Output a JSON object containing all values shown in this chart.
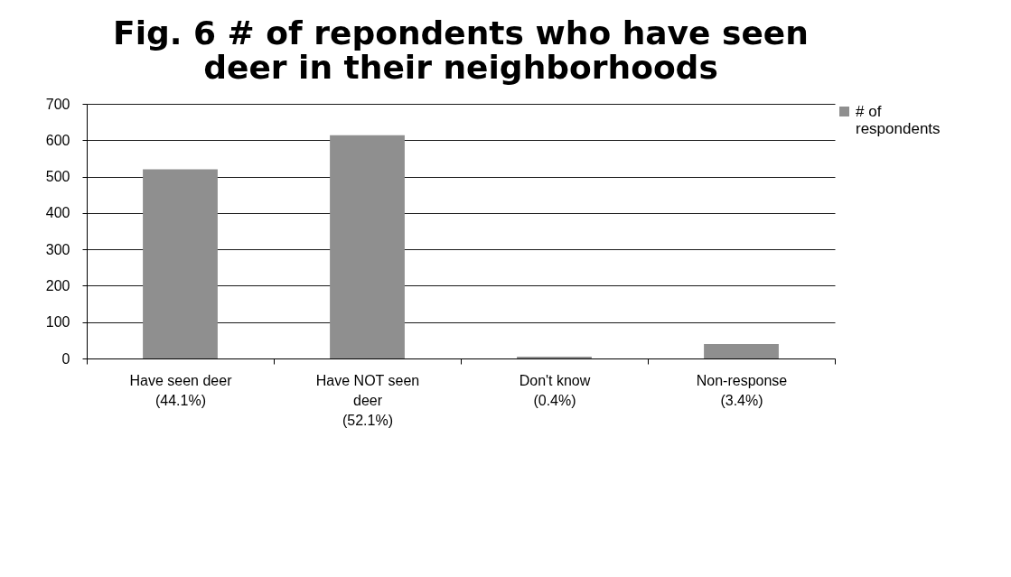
{
  "chart_data": {
    "type": "bar",
    "title": "Fig. 6 # of repondents who have seen deer in their neighborhoods",
    "categories": [
      "Have seen deer (44.1%)",
      "Have NOT seen deer (52.1%)",
      "Don't know (0.4%)",
      "Non-response (3.4%)"
    ],
    "series": [
      {
        "name": "# of respondents",
        "color": "#8f8f8f",
        "values": [
          520,
          614,
          5,
          40
        ]
      }
    ],
    "ylim": [
      0,
      700
    ],
    "yticks": [
      0,
      100,
      200,
      300,
      400,
      500,
      600,
      700
    ],
    "grid": "y",
    "legend": "top right"
  }
}
